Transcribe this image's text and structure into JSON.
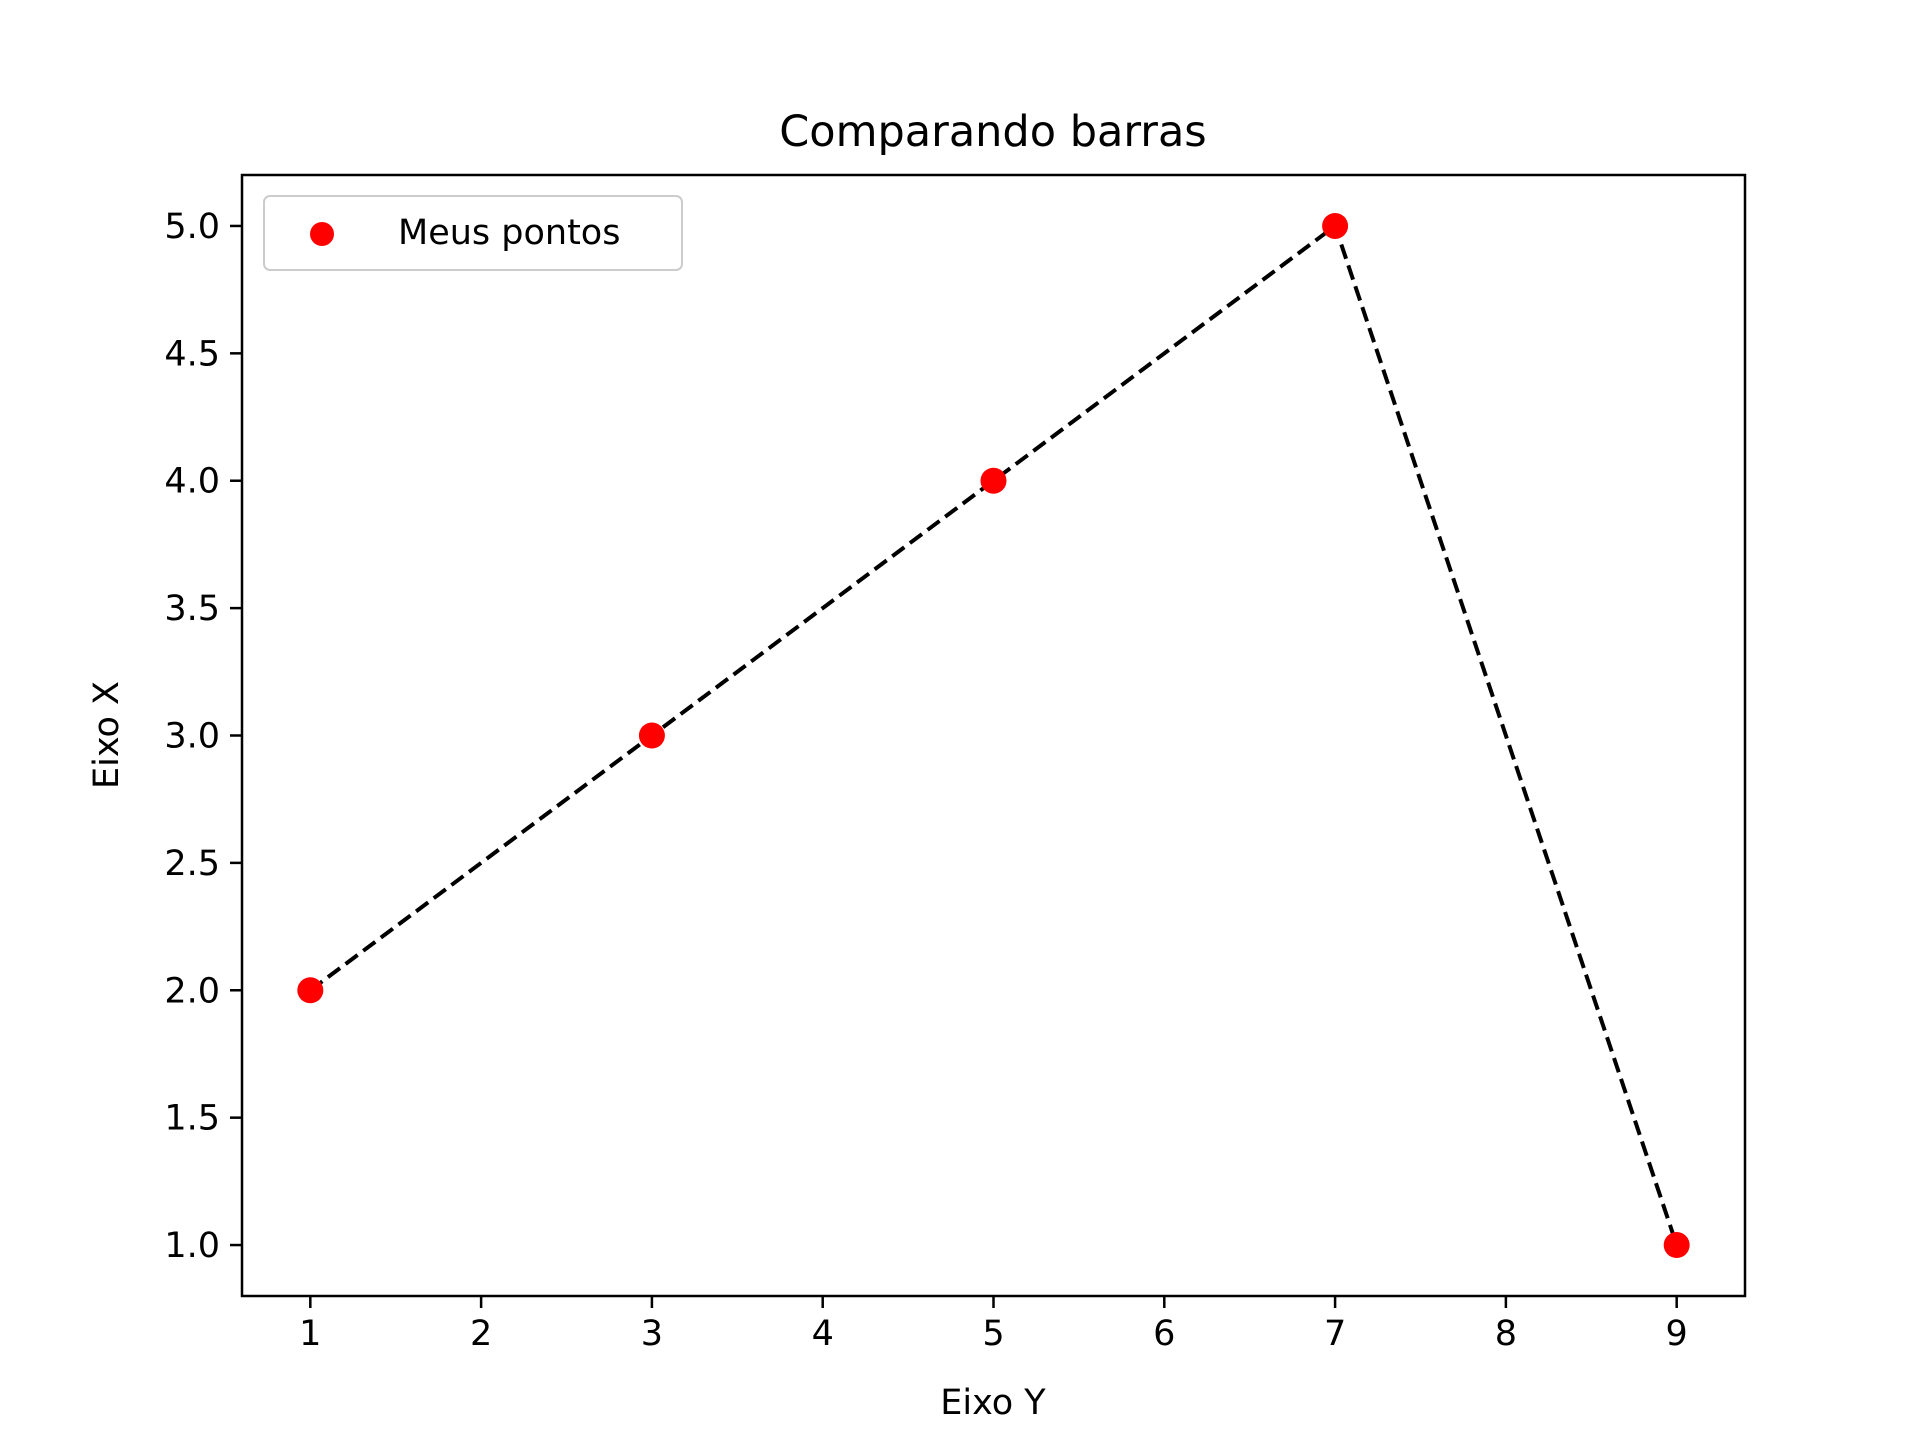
{
  "chart_data": {
    "type": "line",
    "title": "Comparando barras",
    "xlabel": "Eixo Y",
    "ylabel": "Eixo X",
    "x": [
      1,
      3,
      5,
      7,
      9
    ],
    "xticks": [
      1,
      2,
      3,
      4,
      5,
      6,
      7,
      8,
      9
    ],
    "yticks": [
      1.0,
      1.5,
      2.0,
      2.5,
      3.0,
      3.5,
      4.0,
      4.5,
      5.0
    ],
    "xlim": [
      0.6,
      9.4
    ],
    "ylim": [
      0.8,
      5.2
    ],
    "grid": false,
    "legend_position": "top-left",
    "series": [
      {
        "name": "Meus pontos",
        "kind": "scatter",
        "values": [
          2,
          3,
          4,
          5,
          1
        ],
        "color": "#ff0000"
      },
      {
        "kind": "line",
        "line_style": "dashed",
        "values": [
          2,
          3,
          4,
          5,
          1
        ],
        "color": "#000000"
      }
    ]
  }
}
